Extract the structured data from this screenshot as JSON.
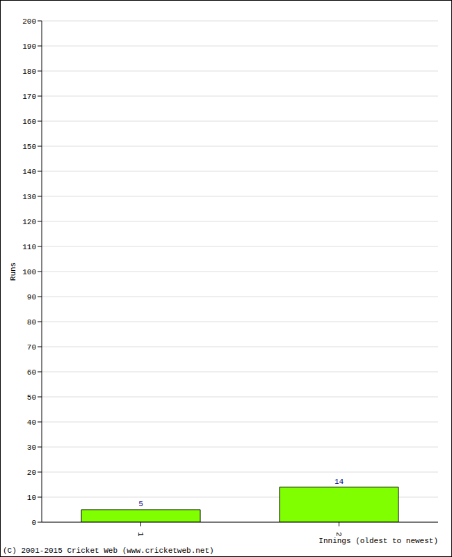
{
  "chart_data": {
    "type": "bar",
    "categories": [
      "1",
      "2"
    ],
    "values": [
      5,
      14
    ],
    "color": "#80ff00",
    "ylim": [
      0,
      200
    ],
    "yticks": [
      0,
      10,
      20,
      30,
      40,
      50,
      60,
      70,
      80,
      90,
      100,
      110,
      120,
      130,
      140,
      150,
      160,
      170,
      180,
      190,
      200
    ],
    "grid": true,
    "data_labels": true,
    "x_label": "Innings (oldest to newest)",
    "y_label": "Runs",
    "annotations": [
      "(C) 2001-2015 Cricket Web (www.cricketweb.net)"
    ]
  }
}
